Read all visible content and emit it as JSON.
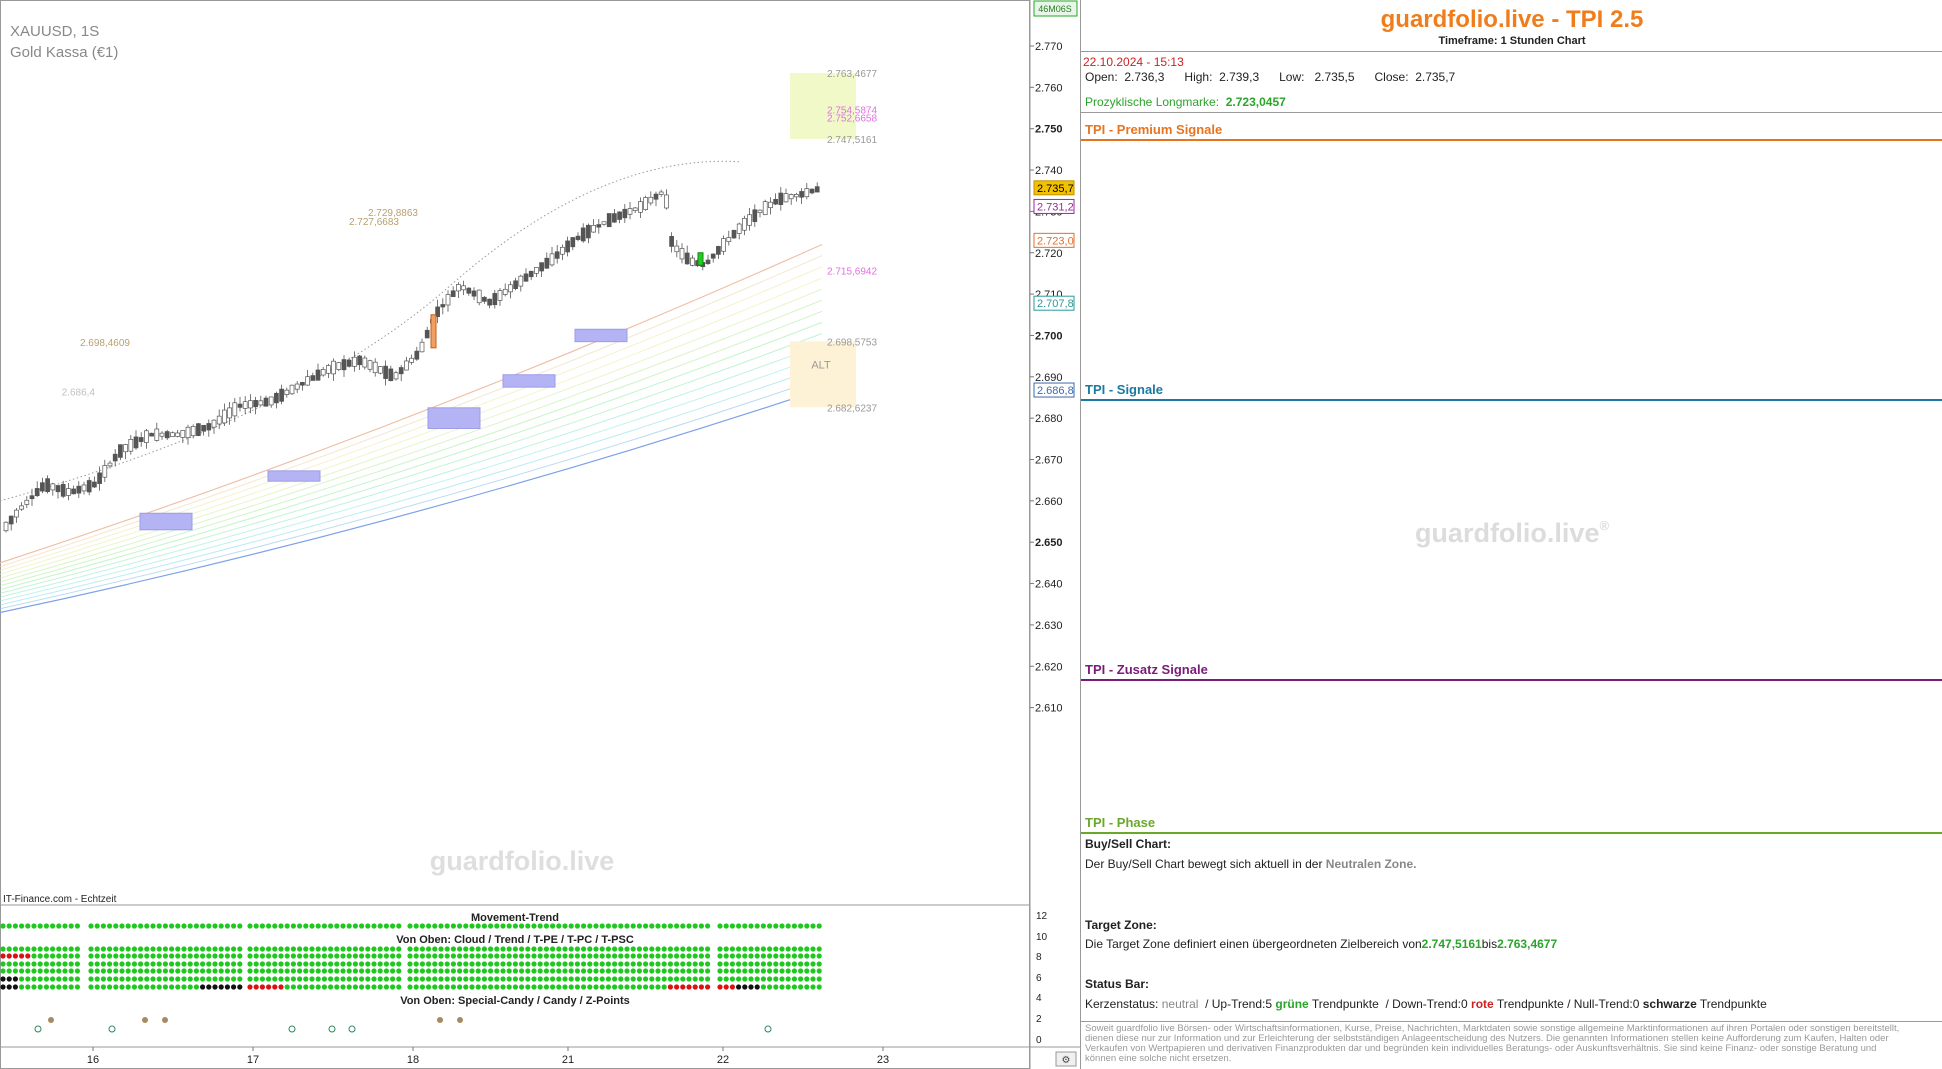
{
  "symbol": "XAUUSD, 1S",
  "instrument": "Gold Kassa (€1)",
  "source": "IT-Finance.com - Echtzeit",
  "watermark": "guardfolio.live",
  "timer_badge": "46M06S",
  "price_axis": {
    "ticks": [
      "2.770",
      "2.760",
      "2.750",
      "2.740",
      "2.730",
      "2.720",
      "2.710",
      "2.700",
      "2.690",
      "2.680",
      "2.670",
      "2.660",
      "2.650",
      "2.640",
      "2.630",
      "2.620",
      "2.610"
    ],
    "markers": [
      {
        "label": "2.735,7",
        "value": 2735.7,
        "color": "#f2c200",
        "text_color": "#000000"
      },
      {
        "label": "2.731,2",
        "value": 2731.2,
        "color": "#ffffff",
        "text_color": "#9a2a9a"
      },
      {
        "label": "2.723,0",
        "value": 2723.0,
        "color": "#ffffff",
        "text_color": "#e07030"
      },
      {
        "label": "2.707,8",
        "value": 2707.8,
        "color": "#ffffff",
        "text_color": "#2a9a9a"
      },
      {
        "label": "2.686,8",
        "value": 2686.8,
        "color": "#ffffff",
        "text_color": "#3a6ab0"
      }
    ]
  },
  "x_axis": {
    "ticks": [
      "16",
      "17",
      "18",
      "21",
      "22",
      "23"
    ]
  },
  "chart_data": {
    "type": "candlestick",
    "title": "XAUUSD, 1S",
    "ylim": [
      2605,
      2773
    ],
    "x_ticks": [
      "16",
      "17",
      "18",
      "21",
      "22",
      "23"
    ],
    "last_close": 2735.7,
    "level_labels": [
      {
        "label": "2.763,4677",
        "value": 2763.4677,
        "color": "#999999"
      },
      {
        "label": "2.754,5874",
        "value": 2754.5874,
        "color": "#e070e0"
      },
      {
        "label": "2.752,6658",
        "value": 2752.6658,
        "color": "#e070e0"
      },
      {
        "label": "2.747,5161",
        "value": 2747.5161,
        "color": "#999999"
      },
      {
        "label": "2.729,8863",
        "value": 2729.8863,
        "color": "#b8a070"
      },
      {
        "label": "2.727,6683",
        "value": 2727.6683,
        "color": "#b8a070"
      },
      {
        "label": "2.715,6942",
        "value": 2715.6942,
        "color": "#e070e0"
      },
      {
        "label": "2.698,5753",
        "value": 2698.5753,
        "color": "#999999"
      },
      {
        "label": "2.698,4609",
        "value": 2698.4609,
        "color": "#b8a070"
      },
      {
        "label": "2.686,4",
        "value": 2686.4,
        "color": "#c0c0c0"
      },
      {
        "label": "2.682,6237",
        "value": 2682.6237,
        "color": "#999999"
      }
    ],
    "target_zone": {
      "low": 2747.5161,
      "high": 2763.4677
    },
    "alt_zone": {
      "low": 2682.6237,
      "high": 2698.5753,
      "label": "ALT"
    },
    "ohlc": {
      "open": 2736.3,
      "high": 2739.3,
      "low": 2735.5,
      "close": 2735.7
    }
  },
  "indicator": {
    "title": "Movement-Trend",
    "row_label_top": "Von Oben: Cloud / Trend / T-PE / T-PC / T-PSC",
    "row_label_bottom": "Von Oben: Special-Candy / Candy / Z-Points",
    "axis_ticks": [
      "12",
      "10",
      "8",
      "6",
      "4",
      "2",
      "0"
    ]
  },
  "panel": {
    "brand": "guardfolio.live - TPI 2.5",
    "timeframe": "Timeframe: 1 Stunden Chart",
    "date": "22.10.2024 - 15:13",
    "ohlc_text": "Open:  2.736,3      High:  2.739,3      Low:   2.735,5      Close:  2.735,7",
    "long_label": "Prozyklische Longmarke:",
    "long_value": "2.723,0457",
    "sections": [
      {
        "title": "TPI - Premium Signale",
        "color": "#e8741e"
      },
      {
        "title": "TPI - Signale",
        "color": "#1a7aa0"
      },
      {
        "title": "TPI - Zusatz Signale",
        "color": "#7a1a7a"
      },
      {
        "title": "TPI - Phase",
        "color": "#6aa82a"
      }
    ],
    "watermark": "guardfolio.live",
    "buysell_label": "Buy/Sell Chart:",
    "buysell_text": "Der Buy/Sell Chart bewegt sich aktuell in der",
    "buysell_zone": "Neutralen Zone.",
    "target_label": "Target Zone:",
    "target_text": "Die Target Zone definiert einen übergeordneten Zielbereich von",
    "target_low": "2.747,5161",
    "target_mid": "bis",
    "target_high": "2.763,4677",
    "status_label": "Status Bar:",
    "status": {
      "kerzen_label": "Kerzenstatus:",
      "kerzen_value": "neutral",
      "up_label": "/ Up-Trend:5",
      "up_word": "grüne",
      "up_tail": "Trendpunkte",
      "down_label": "/ Down-Trend:0",
      "down_word": "rote",
      "down_tail": "Trendpunkte",
      "null_label": "/ Null-Trend:0",
      "null_word": "schwarze",
      "null_tail": "Trendpunkte"
    },
    "disclaimer": "Soweit guardfolio live Börsen- oder Wirtschaftsinformationen, Kurse, Preise, Nachrichten, Marktdaten sowie sonstige allgemeine Marktinformationen auf ihren Portalen oder sonstigen bereitstellt, dienen diese nur zur Information und zur Erleichterung der selbstständigen Anlageentscheidung des Nutzers. Die genannten Informationen stellen keine Aufforderung zum Kaufen, Halten oder Verkaufen von Wertpapieren und derivativen Finanzprodukten dar und begründen kein individuelles Beratungs- oder Auskunftsverhältnis. Sie sind keine Finanz- oder sonstige Beratung und können eine solche nicht ersetzen."
  },
  "colors": {
    "brand": "#f07d1b",
    "candle_up": "#ffffff",
    "candle_down": "#444444",
    "dot_green": "#1ec81e",
    "dot_red": "#dd1111",
    "dot_black": "#111111"
  }
}
